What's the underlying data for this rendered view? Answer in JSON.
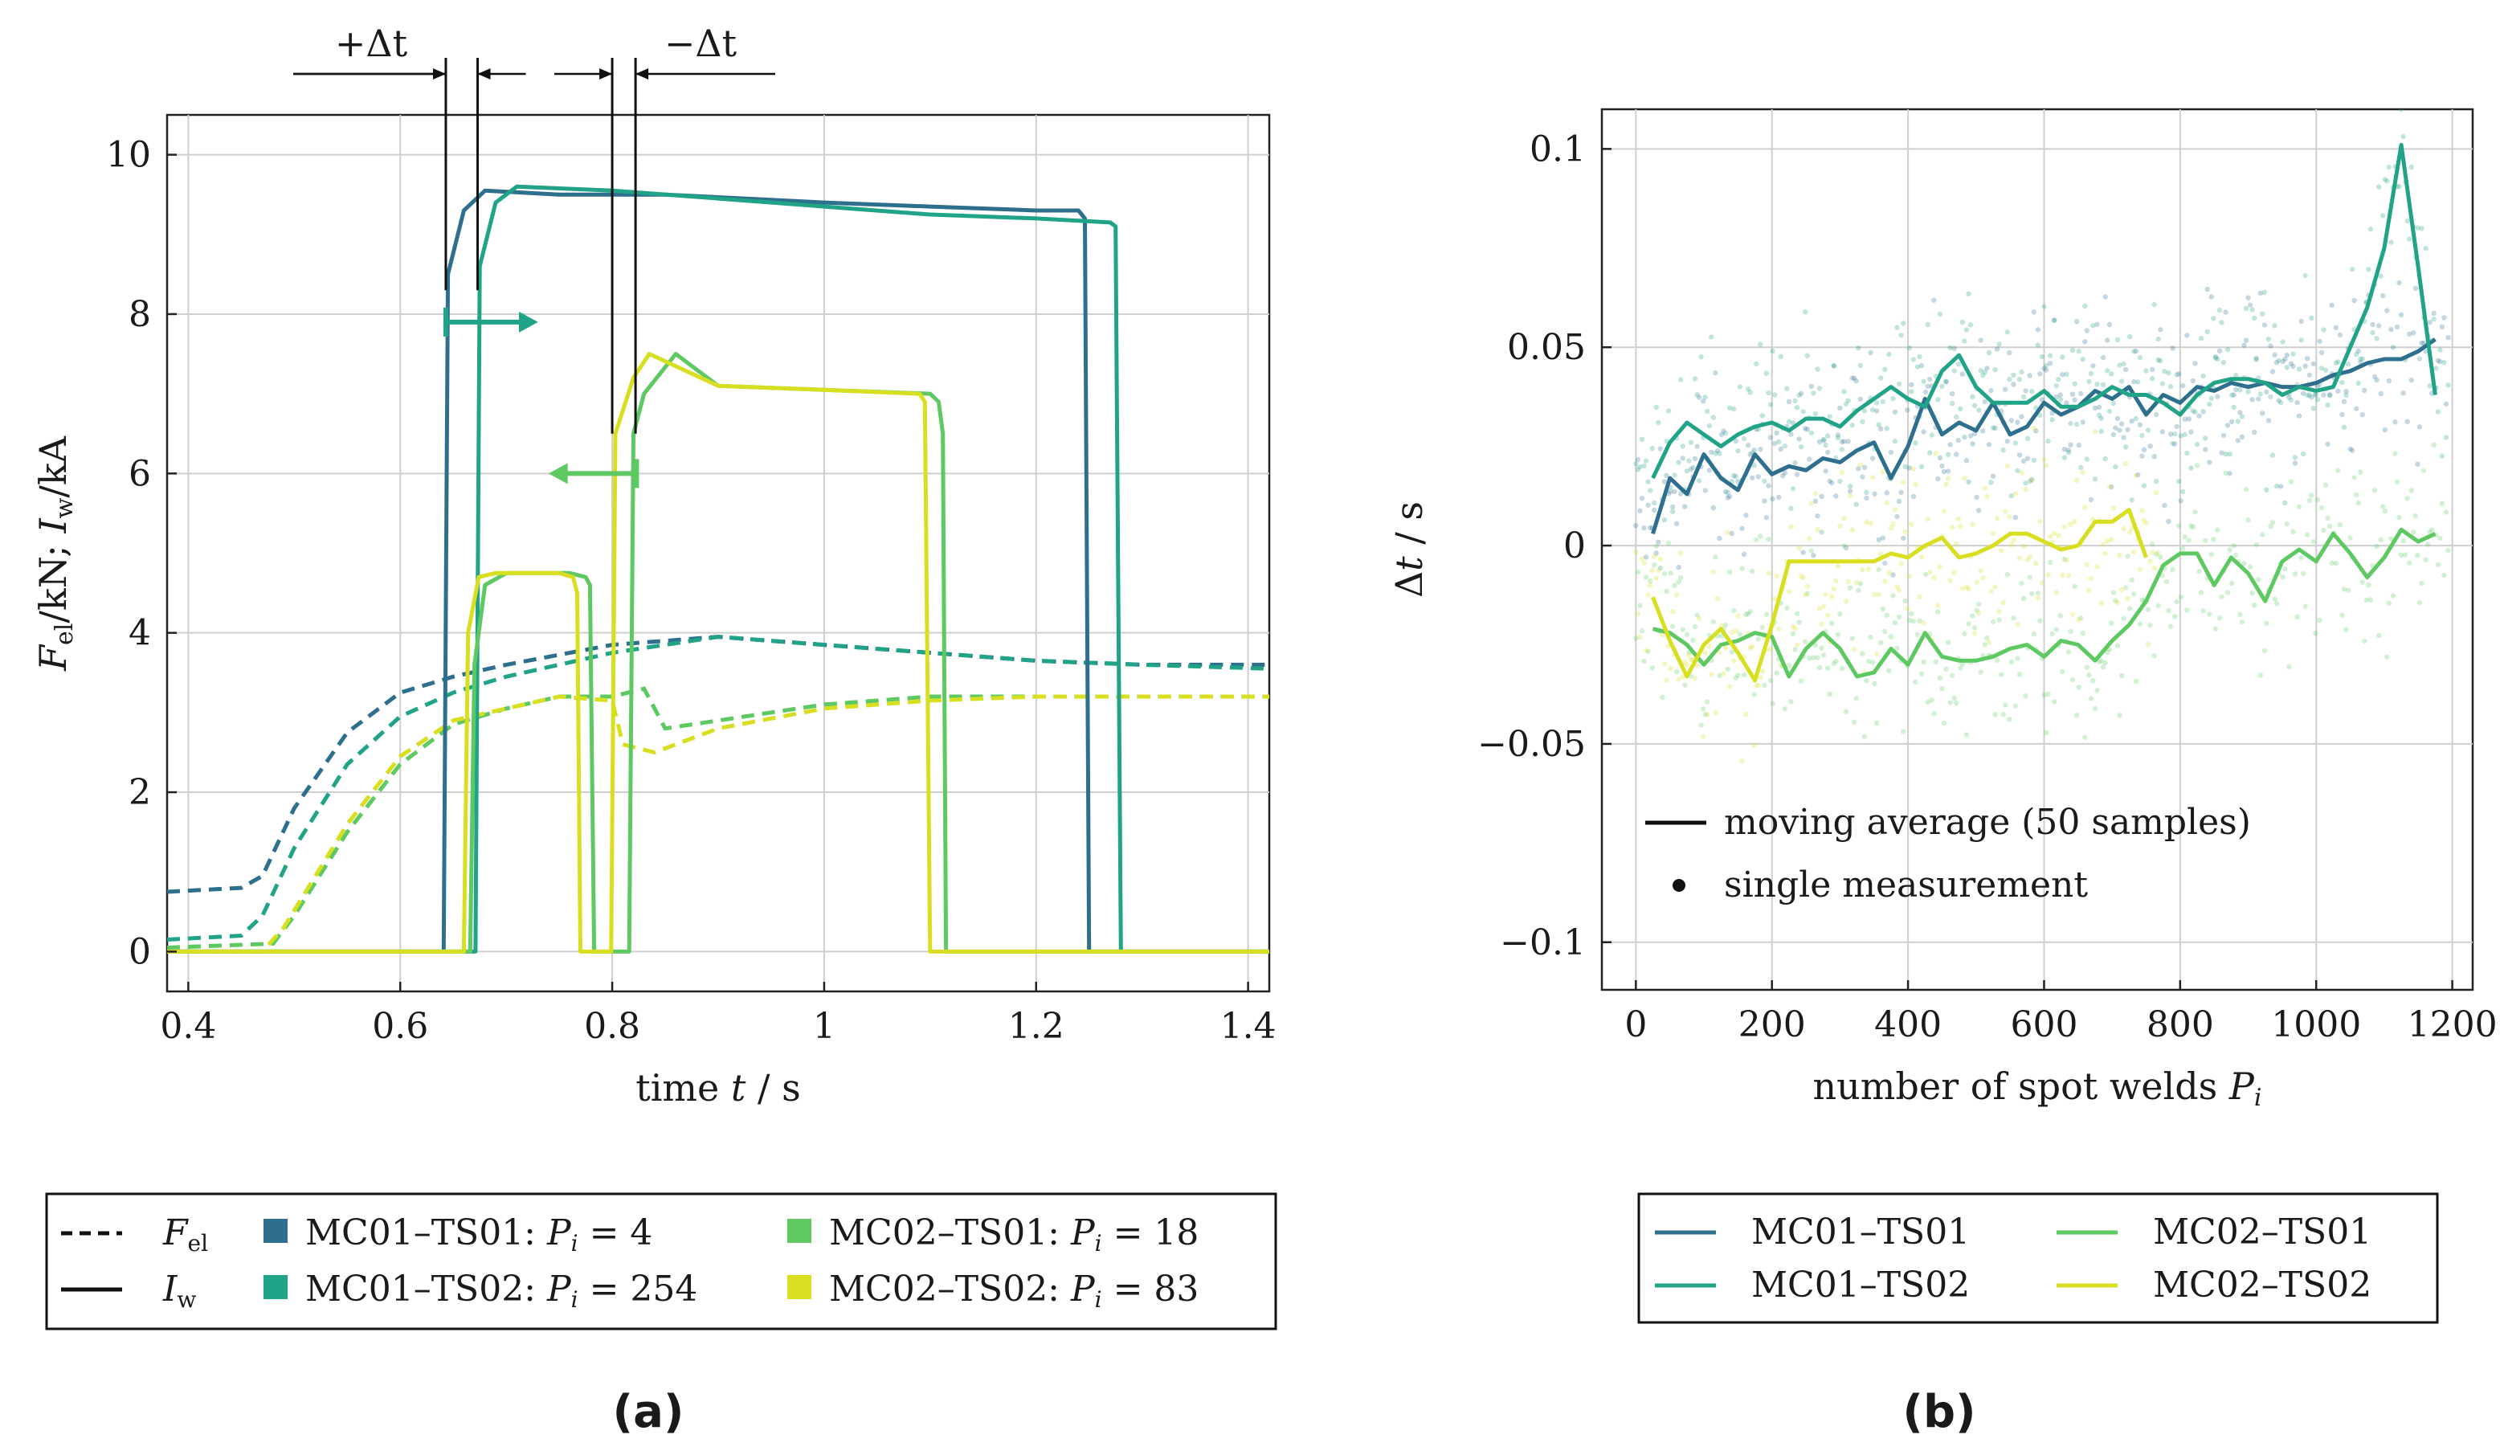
{
  "colors": {
    "MC01-TS01": "#2e6f8e",
    "MC01-TS02": "#20a386",
    "MC02-TS01": "#5ec962",
    "MC02-TS02": "#d7df20",
    "arrow_a": "#20a386",
    "arrow_b": "#5ec962"
  },
  "chart_data": [
    {
      "panel": "(a)",
      "type": "line",
      "xlabel": "time t / s",
      "ylabel": "F_el/kN; I_w/kA",
      "xlim": [
        0.38,
        1.42
      ],
      "ylim": [
        -0.5,
        10.5
      ],
      "xticks": [
        0.4,
        0.6,
        0.8,
        1.0,
        1.2,
        1.4
      ],
      "xtick_labels": [
        "0.4",
        "0.6",
        "0.8",
        "1",
        "1.2",
        "1.4"
      ],
      "yticks": [
        0,
        2,
        4,
        6,
        8,
        10
      ],
      "ytick_labels": [
        "0",
        "2",
        "4",
        "6",
        "8",
        "10"
      ],
      "grid": true,
      "annotations": {
        "plus_delta": "+Δt",
        "minus_delta": "−Δt"
      },
      "current_series": [
        {
          "name": "MC01-TS01",
          "x": [
            0.38,
            0.641,
            0.645,
            0.66,
            0.68,
            0.75,
            0.85,
            1.0,
            1.1,
            1.2,
            1.24,
            1.246,
            1.25,
            1.42
          ],
          "y": [
            0,
            0,
            8.5,
            9.3,
            9.55,
            9.5,
            9.5,
            9.4,
            9.35,
            9.3,
            9.3,
            9.2,
            0,
            0
          ]
        },
        {
          "name": "MC01-TS02",
          "x": [
            0.38,
            0.671,
            0.675,
            0.69,
            0.71,
            0.8,
            0.9,
            1.0,
            1.1,
            1.2,
            1.27,
            1.275,
            1.28,
            1.42
          ],
          "y": [
            0,
            0,
            8.6,
            9.4,
            9.6,
            9.55,
            9.45,
            9.35,
            9.25,
            9.2,
            9.15,
            9.1,
            0,
            0
          ]
        },
        {
          "name": "MC02-TS01",
          "x": [
            0.38,
            0.666,
            0.67,
            0.68,
            0.7,
            0.76,
            0.775,
            0.779,
            0.783,
            0.816,
            0.82,
            0.83,
            0.86,
            0.9,
            1.0,
            1.1,
            1.108,
            1.112,
            1.115,
            1.42
          ],
          "y": [
            0,
            0,
            3.6,
            4.6,
            4.75,
            4.75,
            4.7,
            4.6,
            0,
            0,
            6.5,
            7.0,
            7.5,
            7.1,
            7.05,
            7.0,
            6.9,
            6.5,
            0,
            0
          ]
        },
        {
          "name": "MC02-TS02",
          "x": [
            0.38,
            0.66,
            0.664,
            0.674,
            0.69,
            0.75,
            0.763,
            0.767,
            0.77,
            0.799,
            0.803,
            0.82,
            0.835,
            0.9,
            1.0,
            1.09,
            1.095,
            1.1,
            1.42
          ],
          "y": [
            0,
            0,
            4.0,
            4.7,
            4.75,
            4.75,
            4.7,
            4.5,
            0,
            0,
            6.5,
            7.2,
            7.5,
            7.1,
            7.05,
            7.0,
            6.9,
            0,
            0
          ]
        }
      ],
      "force_series": [
        {
          "name": "MC01-TS01",
          "x": [
            0.38,
            0.45,
            0.47,
            0.5,
            0.55,
            0.6,
            0.65,
            0.7,
            0.8,
            0.9,
            1.0,
            1.1,
            1.2,
            1.3,
            1.42
          ],
          "y": [
            0.75,
            0.8,
            0.95,
            1.8,
            2.75,
            3.25,
            3.45,
            3.6,
            3.85,
            3.95,
            3.85,
            3.75,
            3.65,
            3.6,
            3.6
          ]
        },
        {
          "name": "MC01-TS02",
          "x": [
            0.38,
            0.45,
            0.47,
            0.5,
            0.55,
            0.6,
            0.65,
            0.7,
            0.8,
            0.9,
            1.0,
            1.1,
            1.2,
            1.3,
            1.42
          ],
          "y": [
            0.15,
            0.2,
            0.45,
            1.3,
            2.35,
            2.95,
            3.25,
            3.45,
            3.75,
            3.95,
            3.85,
            3.75,
            3.65,
            3.6,
            3.55
          ]
        },
        {
          "name": "MC02-TS01",
          "x": [
            0.38,
            0.48,
            0.5,
            0.55,
            0.6,
            0.65,
            0.7,
            0.75,
            0.8,
            0.83,
            0.85,
            0.9,
            1.0,
            1.1,
            1.2,
            1.3,
            1.42
          ],
          "y": [
            0.05,
            0.1,
            0.45,
            1.5,
            2.35,
            2.85,
            3.05,
            3.2,
            3.2,
            3.3,
            2.8,
            2.9,
            3.1,
            3.2,
            3.2,
            3.2,
            3.2
          ]
        },
        {
          "name": "MC02-TS02",
          "x": [
            0.38,
            0.47,
            0.49,
            0.55,
            0.6,
            0.65,
            0.7,
            0.75,
            0.8,
            0.81,
            0.84,
            0.9,
            1.0,
            1.1,
            1.2,
            1.3,
            1.42
          ],
          "y": [
            0.0,
            0.0,
            0.3,
            1.6,
            2.45,
            2.9,
            3.05,
            3.2,
            3.15,
            2.6,
            2.5,
            2.8,
            3.05,
            3.15,
            3.2,
            3.2,
            3.2
          ]
        }
      ],
      "legend": {
        "force": "F_el",
        "current": "I_w",
        "entries": [
          {
            "name": "MC01–TS01:",
            "pi": "P_i = 4"
          },
          {
            "name": "MC01–TS02:",
            "pi": "P_i = 254"
          },
          {
            "name": "MC02–TS01:",
            "pi": "P_i = 18"
          },
          {
            "name": "MC02–TS02:",
            "pi": "P_i = 83"
          }
        ]
      }
    },
    {
      "panel": "(b)",
      "type": "line+scatter",
      "xlabel": "number of spot welds P_i",
      "ylabel": "Δt / s",
      "xlim": [
        -50,
        1230
      ],
      "ylim": [
        -0.112,
        0.11
      ],
      "xticks": [
        0,
        200,
        400,
        600,
        800,
        1000,
        1200
      ],
      "xtick_labels": [
        "0",
        "200",
        "400",
        "600",
        "800",
        "1000",
        "1200"
      ],
      "yticks": [
        -0.1,
        -0.05,
        0,
        0.05,
        0.1
      ],
      "ytick_labels": [
        "−0.1",
        "−0.05",
        "0",
        "0.05",
        "0.1"
      ],
      "grid": true,
      "inner_legend": [
        "moving average (50 samples)",
        "single measurement"
      ],
      "series": [
        {
          "name": "MC01–TS01",
          "x": [
            25,
            50,
            75,
            100,
            125,
            150,
            175,
            200,
            225,
            250,
            275,
            300,
            325,
            350,
            375,
            400,
            425,
            450,
            475,
            500,
            525,
            550,
            575,
            600,
            625,
            650,
            675,
            700,
            725,
            750,
            775,
            800,
            825,
            850,
            875,
            900,
            925,
            950,
            975,
            1000,
            1025,
            1050,
            1075,
            1100,
            1125,
            1150,
            1175
          ],
          "values": [
            0.003,
            0.017,
            0.013,
            0.023,
            0.017,
            0.014,
            0.023,
            0.018,
            0.02,
            0.019,
            0.022,
            0.021,
            0.024,
            0.026,
            0.017,
            0.025,
            0.037,
            0.028,
            0.031,
            0.029,
            0.036,
            0.028,
            0.03,
            0.036,
            0.033,
            0.035,
            0.039,
            0.037,
            0.04,
            0.033,
            0.038,
            0.036,
            0.04,
            0.039,
            0.041,
            0.04,
            0.041,
            0.04,
            0.04,
            0.041,
            0.043,
            0.044,
            0.046,
            0.047,
            0.047,
            0.049,
            0.052
          ]
        },
        {
          "name": "MC01–TS02",
          "x": [
            25,
            50,
            75,
            100,
            125,
            150,
            175,
            200,
            225,
            250,
            275,
            300,
            325,
            350,
            375,
            400,
            425,
            450,
            475,
            500,
            525,
            550,
            575,
            600,
            625,
            650,
            675,
            700,
            725,
            750,
            775,
            800,
            825,
            850,
            875,
            900,
            925,
            950,
            975,
            1000,
            1025,
            1050,
            1075,
            1100,
            1125,
            1150,
            1175
          ],
          "values": [
            0.017,
            0.026,
            0.031,
            0.028,
            0.025,
            0.028,
            0.03,
            0.031,
            0.029,
            0.032,
            0.032,
            0.03,
            0.034,
            0.037,
            0.04,
            0.037,
            0.035,
            0.044,
            0.048,
            0.04,
            0.036,
            0.036,
            0.036,
            0.039,
            0.035,
            0.035,
            0.037,
            0.04,
            0.038,
            0.038,
            0.036,
            0.033,
            0.038,
            0.041,
            0.042,
            0.042,
            0.041,
            0.038,
            0.04,
            0.039,
            0.04,
            0.05,
            0.06,
            0.075,
            0.101,
            0.07,
            0.038
          ]
        },
        {
          "name": "MC02–TS01",
          "x": [
            25,
            50,
            75,
            100,
            125,
            150,
            175,
            200,
            225,
            250,
            275,
            300,
            325,
            350,
            375,
            400,
            425,
            450,
            475,
            500,
            525,
            550,
            575,
            600,
            625,
            650,
            675,
            700,
            725,
            750,
            775,
            800,
            825,
            850,
            875,
            900,
            925,
            950,
            975,
            1000,
            1025,
            1050,
            1075,
            1100,
            1125,
            1150,
            1175
          ],
          "values": [
            -0.021,
            -0.022,
            -0.025,
            -0.03,
            -0.025,
            -0.024,
            -0.022,
            -0.023,
            -0.033,
            -0.026,
            -0.022,
            -0.026,
            -0.033,
            -0.032,
            -0.026,
            -0.03,
            -0.022,
            -0.028,
            -0.029,
            -0.029,
            -0.028,
            -0.026,
            -0.025,
            -0.028,
            -0.024,
            -0.025,
            -0.029,
            -0.024,
            -0.02,
            -0.014,
            -0.005,
            -0.002,
            -0.002,
            -0.01,
            -0.003,
            -0.007,
            -0.014,
            -0.004,
            -0.001,
            -0.004,
            0.003,
            -0.002,
            -0.008,
            -0.003,
            0.004,
            0.001,
            0.003
          ]
        },
        {
          "name": "MC02–TS02",
          "x": [
            25,
            50,
            75,
            100,
            125,
            150,
            175,
            200,
            225,
            250,
            275,
            300,
            325,
            350,
            375,
            400,
            425,
            450,
            475,
            500,
            525,
            550,
            575,
            600,
            625,
            650,
            675,
            700,
            725,
            750
          ],
          "values": [
            -0.013,
            -0.024,
            -0.033,
            -0.025,
            -0.021,
            -0.027,
            -0.034,
            -0.02,
            -0.004,
            -0.004,
            -0.004,
            -0.004,
            -0.004,
            -0.004,
            -0.002,
            -0.003,
            0.0,
            0.002,
            -0.003,
            -0.002,
            0.0,
            0.003,
            0.003,
            0.001,
            -0.001,
            0.0,
            0.006,
            0.006,
            0.009,
            -0.003
          ]
        }
      ]
    }
  ],
  "legend_b": {
    "entries": [
      "MC01–TS01",
      "MC01–TS02",
      "MC02–TS01",
      "MC02–TS02"
    ]
  }
}
